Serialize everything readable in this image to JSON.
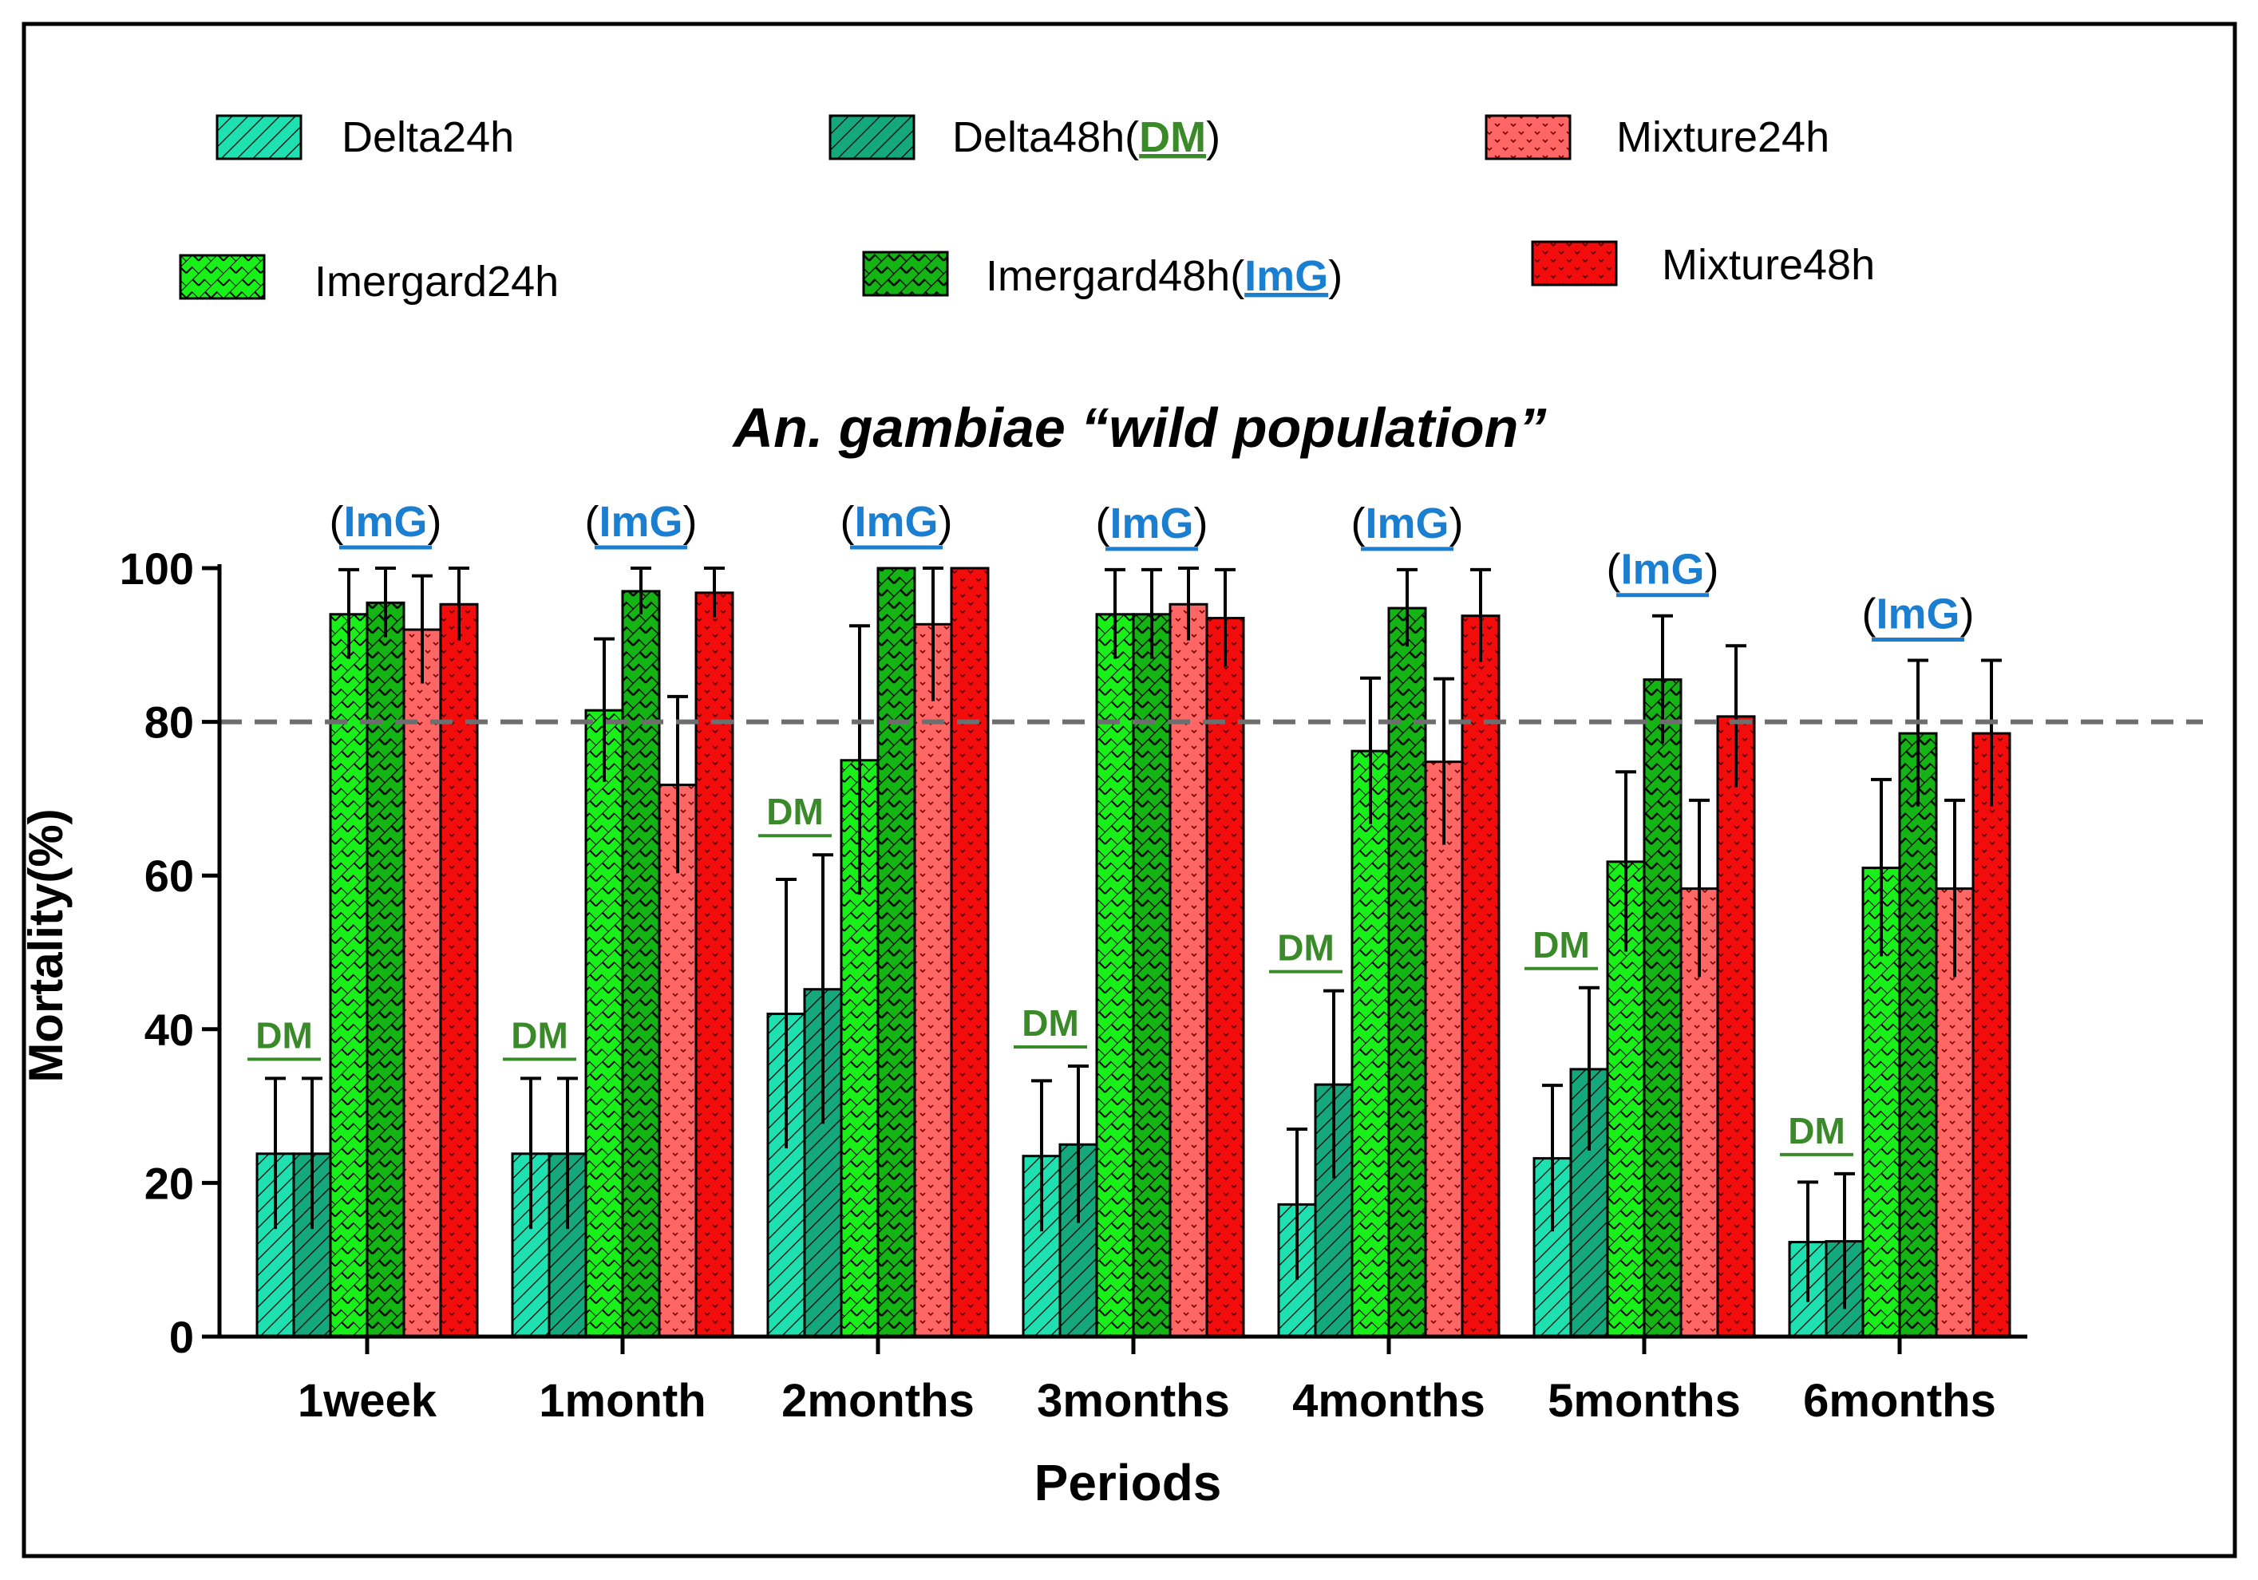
{
  "colors": {
    "delta24": "#1fe0b0",
    "delta48": "#14a87c",
    "imer24": "#19f019",
    "imer48": "#14b414",
    "mix24": "#ff6666",
    "mix48": "#f20c0c",
    "dm": "#3a8a2a",
    "img": "#1a7fd1",
    "threshold": "#6e6e6e"
  },
  "legend": {
    "delta24": "Delta24h",
    "delta48": "Delta48h",
    "delta48_mark": "DM",
    "mix24": "Mixture24h",
    "imer24": "Imergard24h",
    "imer48": "Imergard48h",
    "imer48_mark": "ImG",
    "mix48": "Mixture48h",
    "paren_open": "(",
    "paren_close": ")"
  },
  "chart_data": {
    "type": "bar",
    "title": "An. gambiae “wild population”",
    "xlabel": "Periods",
    "ylabel": "Mortality(%)",
    "ylim": [
      0,
      100
    ],
    "yticks": [
      0,
      20,
      40,
      60,
      80,
      100
    ],
    "threshold": 80,
    "categories": [
      "1week",
      "1month",
      "2months",
      "3months",
      "4months",
      "5months",
      "6months"
    ],
    "series": [
      {
        "name": "Delta24h",
        "key": "delta24",
        "values": [
          23.8,
          23.8,
          42.0,
          23.5,
          17.2,
          23.2,
          12.3
        ],
        "errors": [
          9.8,
          9.8,
          17.5,
          9.8,
          9.8,
          9.5,
          7.8
        ]
      },
      {
        "name": "Delta48h",
        "key": "delta48",
        "values": [
          23.8,
          23.8,
          45.2,
          25.0,
          32.8,
          34.8,
          12.4
        ],
        "errors": [
          9.8,
          9.8,
          17.5,
          10.2,
          12.2,
          10.6,
          8.8
        ]
      },
      {
        "name": "Imergard24h",
        "key": "imer24",
        "values": [
          94.0,
          81.5,
          75.0,
          94.0,
          76.2,
          61.8,
          61.0
        ],
        "errors": [
          5.8,
          9.3,
          17.5,
          5.8,
          9.5,
          11.7,
          11.5
        ]
      },
      {
        "name": "Imergard48h",
        "key": "imer48",
        "values": [
          95.5,
          97.0,
          100,
          94.0,
          94.8,
          85.5,
          78.5
        ],
        "errors": [
          4.5,
          3.0,
          0,
          5.8,
          5.0,
          8.3,
          9.5
        ]
      },
      {
        "name": "Mixture24h",
        "key": "mix24",
        "values": [
          92.0,
          71.8,
          92.7,
          95.3,
          74.8,
          58.3,
          58.3
        ],
        "errors": [
          7.0,
          11.5,
          10.0,
          4.7,
          10.8,
          11.5,
          11.5
        ]
      },
      {
        "name": "Mixture48h",
        "key": "mix48",
        "values": [
          95.3,
          96.8,
          100,
          93.5,
          93.8,
          80.7,
          78.5
        ],
        "errors": [
          4.7,
          3.2,
          0,
          6.3,
          6.0,
          9.2,
          9.5
        ]
      }
    ],
    "annotations": {
      "dm_label": "DM",
      "img_label": "ImG",
      "dm_flags": [
        true,
        true,
        true,
        true,
        true,
        true,
        true
      ],
      "img_flags": [
        true,
        true,
        true,
        true,
        true,
        true,
        true
      ]
    }
  }
}
